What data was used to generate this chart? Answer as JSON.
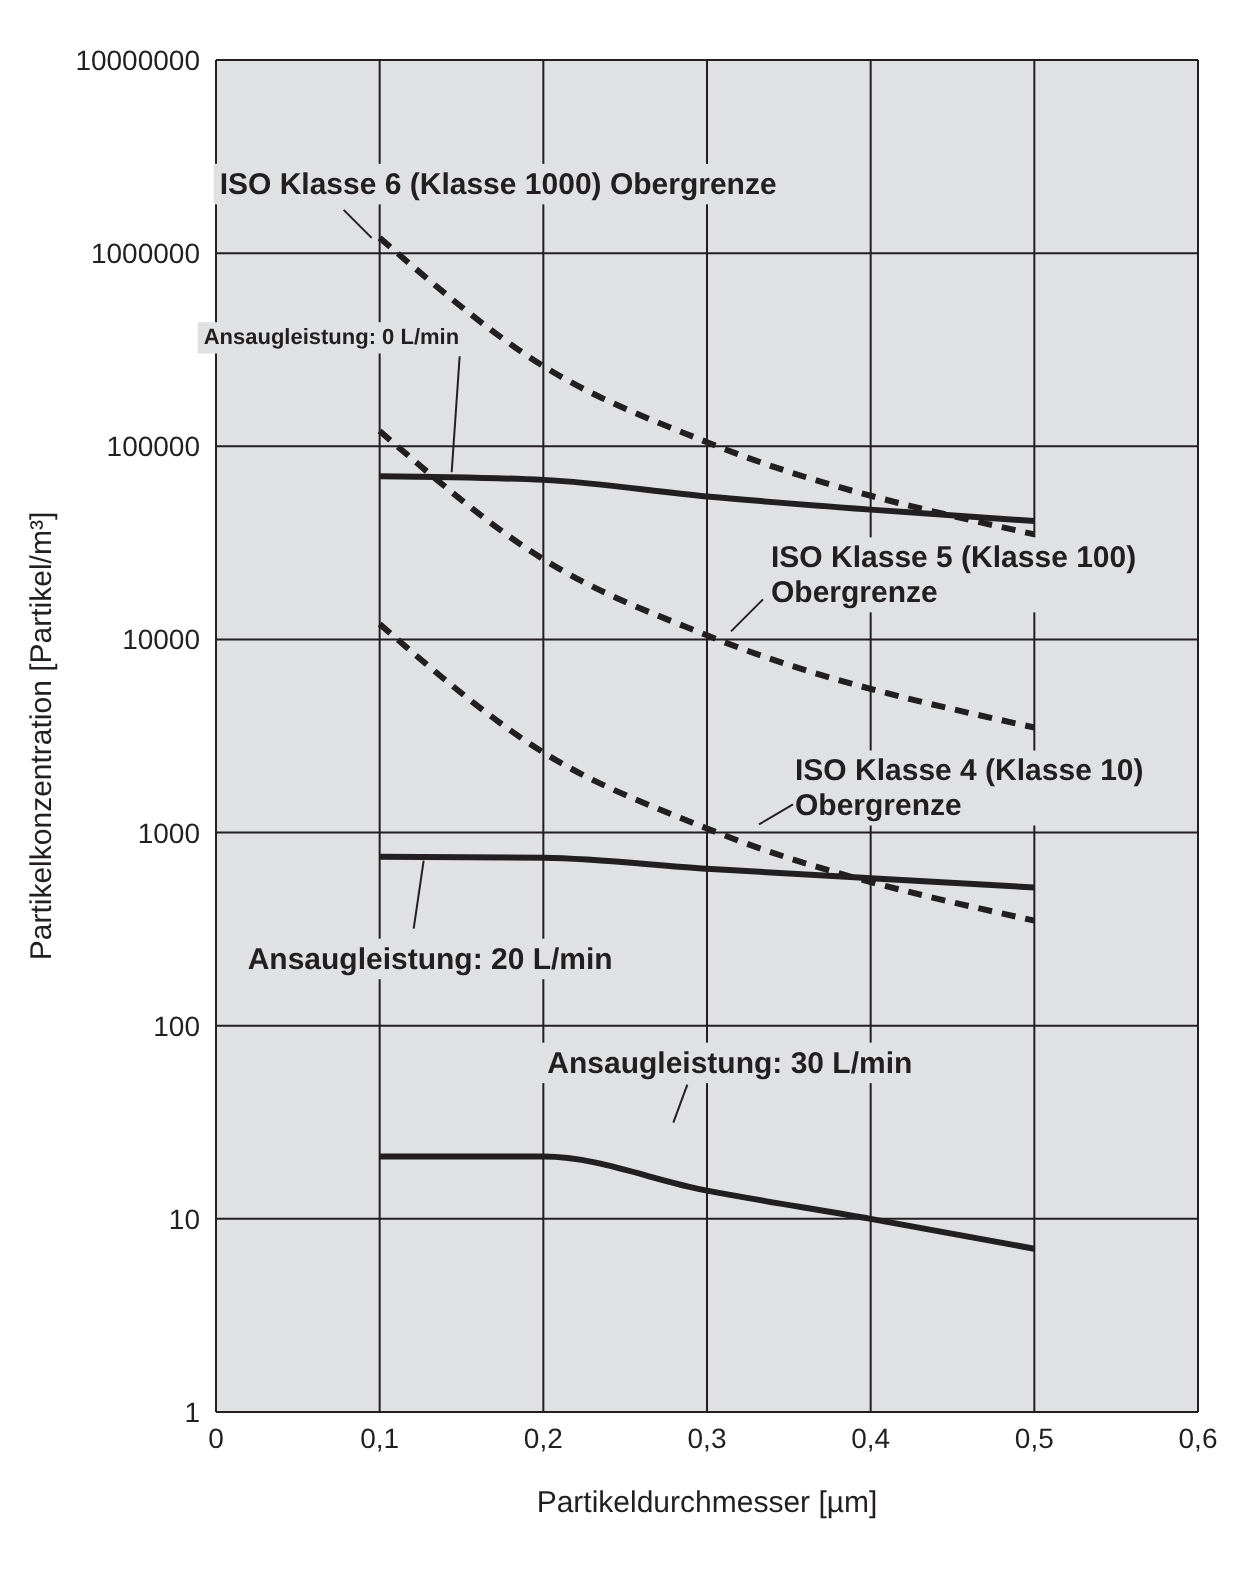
{
  "chart_data": {
    "type": "line",
    "xlabel": "Partikeldurchmesser [µm]",
    "ylabel": "Partikelkonzentration [Partikel/m³]",
    "log": "y",
    "grid": true,
    "xlim": [
      0,
      0.6
    ],
    "xticks": [
      0,
      {
        "value": 0.1,
        "label": "0,1"
      },
      {
        "value": 0.2,
        "label": "0,2"
      },
      {
        "value": 0.3,
        "label": "0,3"
      },
      {
        "value": 0.4,
        "label": "0,4"
      },
      {
        "value": 0.5,
        "label": "0,5"
      },
      {
        "value": 0.6,
        "label": "0,6"
      }
    ],
    "ylim": [
      1,
      10000000
    ],
    "yticks": [
      1,
      10,
      100,
      1000,
      10000,
      100000,
      1000000,
      10000000
    ],
    "series": [
      {
        "name": "ISO Klasse 6 (Klasse 1000) Obergrenze",
        "color": "#231f20",
        "line_style": "dashed",
        "x": [
          0.1,
          0.2,
          0.3,
          0.5
        ],
        "values": [
          1200000,
          260000,
          105000,
          35000
        ]
      },
      {
        "name": "ISO Klasse 5 (Klasse 100) Obergrenze",
        "color": "#231f20",
        "line_style": "dashed",
        "x": [
          0.1,
          0.2,
          0.3,
          0.5
        ],
        "values": [
          120000,
          26000,
          10500,
          3500
        ]
      },
      {
        "name": "ISO Klasse 4 (Klasse 10) Obergrenze",
        "color": "#231f20",
        "line_style": "dashed",
        "x": [
          0.1,
          0.2,
          0.3,
          0.5
        ],
        "values": [
          12000,
          2600,
          1050,
          350
        ]
      },
      {
        "name": "Ansaugleistung: 0 L/min",
        "color": "#231f20",
        "line_style": "solid",
        "x": [
          0.1,
          0.2,
          0.3,
          0.4,
          0.5
        ],
        "values": [
          70000,
          67000,
          55000,
          47000,
          41000
        ]
      },
      {
        "name": "Ansaugleistung: 20 L/min",
        "color": "#231f20",
        "line_style": "solid",
        "x": [
          0.1,
          0.2,
          0.3,
          0.4,
          0.5
        ],
        "values": [
          750,
          740,
          650,
          580,
          520
        ]
      },
      {
        "name": "Ansaugleistung: 30 L/min",
        "color": "#231f20",
        "line_style": "solid",
        "x": [
          0.1,
          0.2,
          0.3,
          0.4,
          0.5
        ],
        "values": [
          21,
          21,
          14,
          10,
          7
        ]
      }
    ]
  }
}
